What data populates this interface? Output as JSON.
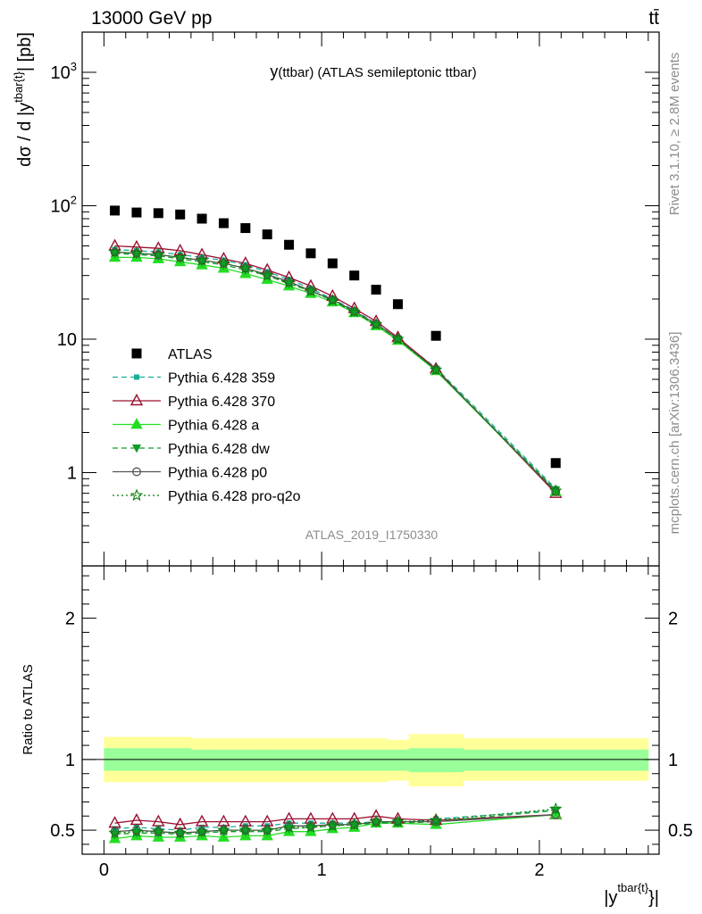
{
  "header": {
    "left": "13000 GeV pp",
    "right": "tt̄"
  },
  "side_labels": {
    "rivet": "Rivet 3.1.10, ≥ 2.8M events",
    "mcplots": "mcplots.cern.ch [arXiv:1306.3436]"
  },
  "watermark": "ATLAS_2019_I1750330",
  "colors": {
    "ATLAS": "#000000",
    "359": "#1aae96",
    "370": "#9a1030",
    "a": "#22dd22",
    "dw": "#129c2a",
    "p0": "#555555",
    "pro-q2o": "#0a7e0a",
    "band_outer": "#ffff99",
    "band_inner": "#99ff99"
  },
  "chart_data": [
    {
      "type": "scatter",
      "title": "y(ttbar) (ATLAS semileptonic ttbar)",
      "title_parts": {
        "main": "y",
        "paren": "(ttbar) (ATLAS semileptonic ttbar)"
      },
      "ylabel": "dσ / d |y^{tbar{t}}| [pb]",
      "ylabel_parts": {
        "main": "dσ / d |y",
        "sup": "tbar{t}",
        "tail": "| [pb]"
      },
      "xlabel": "|y^{tbar{t}}|",
      "xlim": [
        -0.1,
        2.55
      ],
      "ylim": [
        0.2,
        2000
      ],
      "log_y": true,
      "yticks": [
        {
          "value": 1000,
          "label": "10",
          "exp": "3"
        },
        {
          "value": 100,
          "label": "10",
          "exp": "2"
        },
        {
          "value": 10,
          "label": "10",
          "exp": ""
        },
        {
          "value": 1,
          "label": "1",
          "exp": ""
        }
      ],
      "legend_position": "left-center",
      "x": [
        0.05,
        0.15,
        0.25,
        0.35,
        0.45,
        0.55,
        0.65,
        0.75,
        0.85,
        0.95,
        1.05,
        1.15,
        1.25,
        1.35,
        1.525,
        2.075
      ],
      "series": [
        {
          "key": "ATLAS",
          "name": "ATLAS",
          "marker": "square",
          "line": "none",
          "values": [
            92,
            89,
            88,
            86,
            80,
            74,
            68,
            61,
            51,
            44,
            37,
            30,
            23.5,
            18.3,
            10.6,
            1.18
          ]
        },
        {
          "key": "359",
          "name": "Pythia 6.428 359",
          "marker": "smallsquare",
          "line": "dashed",
          "values": [
            47,
            46,
            45,
            43,
            41,
            39,
            36,
            32,
            28,
            24,
            20,
            16.5,
            13.1,
            10.1,
            6.1,
            0.76
          ]
        },
        {
          "key": "370",
          "name": "Pythia 6.428 370",
          "marker": "triangle-open",
          "line": "solid",
          "values": [
            50,
            49,
            48,
            46,
            43,
            40,
            37,
            33,
            29,
            25,
            21,
            17,
            13.6,
            10.3,
            6.0,
            0.7
          ]
        },
        {
          "key": "a",
          "name": "Pythia 6.428 a",
          "marker": "triangle",
          "line": "solid",
          "values": [
            41,
            41,
            40,
            38,
            36,
            34,
            31,
            28,
            25,
            22,
            19,
            15.8,
            12.6,
            9.8,
            5.8,
            0.72
          ]
        },
        {
          "key": "dw",
          "name": "Pythia 6.428 dw",
          "marker": "triangle-down",
          "line": "dashed",
          "values": [
            44,
            43,
            42,
            40,
            38,
            36,
            33,
            30,
            26,
            23,
            19.5,
            16,
            12.9,
            10.0,
            5.9,
            0.74
          ]
        },
        {
          "key": "p0",
          "name": "Pythia 6.428 p0",
          "marker": "circle-open",
          "line": "solid",
          "values": [
            45,
            44,
            43,
            41,
            39,
            37,
            34,
            30.5,
            27,
            23,
            19.8,
            16.2,
            13.0,
            10.1,
            5.9,
            0.72
          ]
        },
        {
          "key": "pro-q2o",
          "name": "Pythia 6.428 pro-q2o",
          "marker": "star",
          "line": "dotted",
          "values": [
            45,
            44,
            43,
            41,
            39,
            37,
            34,
            30,
            26.5,
            23,
            19.5,
            16,
            12.9,
            10.0,
            5.9,
            0.73
          ]
        }
      ]
    },
    {
      "type": "line",
      "ylabel": "Ratio to ATLAS",
      "xlabel": "|y^{tbar{t}}|",
      "xlabel_parts": {
        "main": "|y",
        "sup": "tbar{t}",
        "tail": "}|"
      },
      "xlim": [
        -0.1,
        2.55
      ],
      "ylim": [
        0.33,
        2.37
      ],
      "xticks": [
        {
          "value": 0,
          "label": "0"
        },
        {
          "value": 1,
          "label": "1"
        },
        {
          "value": 2,
          "label": "2"
        }
      ],
      "yticks": [
        {
          "value": 0.5,
          "label": "0.5"
        },
        {
          "value": 1,
          "label": "1"
        },
        {
          "value": 2,
          "label": "2"
        }
      ],
      "bins": [
        {
          "lo": 0.0,
          "hi": 0.1,
          "inner": [
            0.92,
            1.08
          ],
          "outer": [
            0.84,
            1.16
          ]
        },
        {
          "lo": 0.1,
          "hi": 0.2,
          "inner": [
            0.92,
            1.08
          ],
          "outer": [
            0.84,
            1.16
          ]
        },
        {
          "lo": 0.2,
          "hi": 0.3,
          "inner": [
            0.92,
            1.08
          ],
          "outer": [
            0.84,
            1.16
          ]
        },
        {
          "lo": 0.3,
          "hi": 0.4,
          "inner": [
            0.92,
            1.08
          ],
          "outer": [
            0.84,
            1.16
          ]
        },
        {
          "lo": 0.4,
          "hi": 0.5,
          "inner": [
            0.92,
            1.07
          ],
          "outer": [
            0.84,
            1.15
          ]
        },
        {
          "lo": 0.5,
          "hi": 0.6,
          "inner": [
            0.92,
            1.07
          ],
          "outer": [
            0.84,
            1.15
          ]
        },
        {
          "lo": 0.6,
          "hi": 0.7,
          "inner": [
            0.92,
            1.07
          ],
          "outer": [
            0.84,
            1.15
          ]
        },
        {
          "lo": 0.7,
          "hi": 0.8,
          "inner": [
            0.92,
            1.07
          ],
          "outer": [
            0.84,
            1.15
          ]
        },
        {
          "lo": 0.8,
          "hi": 0.9,
          "inner": [
            0.92,
            1.07
          ],
          "outer": [
            0.84,
            1.15
          ]
        },
        {
          "lo": 0.9,
          "hi": 1.0,
          "inner": [
            0.92,
            1.07
          ],
          "outer": [
            0.84,
            1.15
          ]
        },
        {
          "lo": 1.0,
          "hi": 1.1,
          "inner": [
            0.92,
            1.07
          ],
          "outer": [
            0.84,
            1.15
          ]
        },
        {
          "lo": 1.1,
          "hi": 1.2,
          "inner": [
            0.92,
            1.07
          ],
          "outer": [
            0.84,
            1.15
          ]
        },
        {
          "lo": 1.2,
          "hi": 1.3,
          "inner": [
            0.92,
            1.07
          ],
          "outer": [
            0.84,
            1.15
          ]
        },
        {
          "lo": 1.3,
          "hi": 1.4,
          "inner": [
            0.92,
            1.07
          ],
          "outer": [
            0.85,
            1.14
          ]
        },
        {
          "lo": 1.4,
          "hi": 1.65,
          "inner": [
            0.91,
            1.08
          ],
          "outer": [
            0.81,
            1.18
          ]
        },
        {
          "lo": 1.65,
          "hi": 2.5,
          "inner": [
            0.92,
            1.07
          ],
          "outer": [
            0.85,
            1.15
          ]
        }
      ],
      "series": [
        {
          "key": "359",
          "name": "Pythia 6.428 359",
          "marker": "smallsquare",
          "line": "dashed",
          "values": [
            0.51,
            0.52,
            0.51,
            0.5,
            0.52,
            0.52,
            0.53,
            0.53,
            0.55,
            0.55,
            0.55,
            0.55,
            0.56,
            0.55,
            0.58,
            0.64
          ]
        },
        {
          "key": "370",
          "name": "Pythia 6.428 370",
          "marker": "triangle-open",
          "line": "solid",
          "values": [
            0.55,
            0.57,
            0.56,
            0.54,
            0.56,
            0.56,
            0.56,
            0.56,
            0.58,
            0.58,
            0.58,
            0.58,
            0.6,
            0.58,
            0.57,
            0.61
          ]
        },
        {
          "key": "a",
          "name": "Pythia 6.428 a",
          "marker": "triangle",
          "line": "solid",
          "values": [
            0.44,
            0.46,
            0.45,
            0.45,
            0.46,
            0.45,
            0.46,
            0.46,
            0.49,
            0.49,
            0.51,
            0.52,
            0.55,
            0.55,
            0.54,
            0.61
          ]
        },
        {
          "key": "dw",
          "name": "Pythia 6.428 dw",
          "marker": "triangle-down",
          "line": "dashed",
          "values": [
            0.47,
            0.48,
            0.48,
            0.47,
            0.48,
            0.49,
            0.49,
            0.49,
            0.51,
            0.52,
            0.53,
            0.54,
            0.55,
            0.55,
            0.56,
            0.64
          ]
        },
        {
          "key": "p0",
          "name": "Pythia 6.428 p0",
          "marker": "circle-open",
          "line": "solid",
          "values": [
            0.49,
            0.5,
            0.49,
            0.48,
            0.49,
            0.5,
            0.5,
            0.5,
            0.53,
            0.53,
            0.54,
            0.54,
            0.56,
            0.56,
            0.56,
            0.61
          ]
        },
        {
          "key": "pro-q2o",
          "name": "Pythia 6.428 pro-q2o",
          "marker": "star",
          "line": "dotted",
          "values": [
            0.48,
            0.49,
            0.49,
            0.48,
            0.49,
            0.5,
            0.5,
            0.5,
            0.52,
            0.52,
            0.53,
            0.54,
            0.56,
            0.56,
            0.57,
            0.65
          ]
        }
      ]
    }
  ]
}
